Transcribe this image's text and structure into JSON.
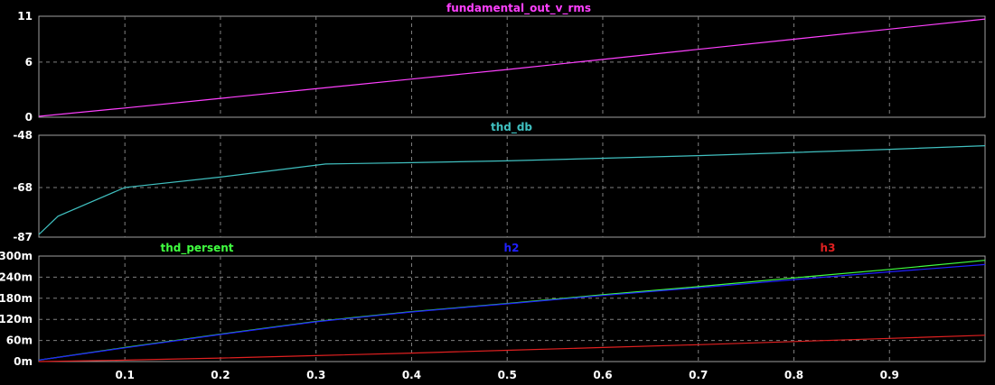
{
  "chart_data": {
    "type": "line",
    "xlim": [
      0.01,
      1.0
    ],
    "x_ticks": [
      "0.1",
      "0.2",
      "0.3",
      "0.4",
      "0.5",
      "0.6",
      "0.7",
      "0.8",
      "0.9"
    ],
    "x_tick_values": [
      0.1,
      0.2,
      0.3,
      0.4,
      0.5,
      0.6,
      0.7,
      0.8,
      0.9
    ],
    "grid": true,
    "panels": [
      {
        "id": "p1",
        "ylim": [
          0,
          11
        ],
        "y_ticks": [
          {
            "value": 0,
            "label": "0"
          },
          {
            "value": 6,
            "label": "6"
          },
          {
            "value": 11,
            "label": "11"
          }
        ],
        "series": [
          {
            "name": "fundamental_out_v_rms",
            "color": "#ff40ff",
            "x": [
              0.01,
              0.1,
              0.2,
              0.3,
              0.4,
              0.5,
              0.6,
              0.7,
              0.8,
              0.9,
              1.0
            ],
            "y": [
              0.1,
              1.0,
              2.05,
              3.1,
              4.15,
              5.2,
              6.3,
              7.4,
              8.5,
              9.6,
              10.7
            ]
          }
        ]
      },
      {
        "id": "p2",
        "ylim": [
          -87,
          -48
        ],
        "y_ticks": [
          {
            "value": -87,
            "label": "-87"
          },
          {
            "value": -68,
            "label": "-68"
          },
          {
            "value": -48,
            "label": "-48"
          }
        ],
        "series": [
          {
            "name": "thd_db",
            "color": "#40c0c0",
            "x": [
              0.01,
              0.03,
              0.1,
              0.2,
              0.31,
              0.4,
              0.5,
              0.6,
              0.7,
              0.8,
              0.9,
              1.0
            ],
            "y": [
              -86,
              -79,
              -68,
              -64,
              -59,
              -58.5,
              -57.8,
              -56.8,
              -55.8,
              -54.6,
              -53.4,
              -52
            ]
          }
        ]
      },
      {
        "id": "p3",
        "ylim": [
          0,
          0.3
        ],
        "y_ticks": [
          {
            "value": 0,
            "label": "0m"
          },
          {
            "value": 0.06,
            "label": "60m"
          },
          {
            "value": 0.12,
            "label": "120m"
          },
          {
            "value": 0.18,
            "label": "180m"
          },
          {
            "value": 0.24,
            "label": "240m"
          },
          {
            "value": 0.3,
            "label": "300m"
          }
        ],
        "series": [
          {
            "name": "thd_persent",
            "color": "#40ff40",
            "x": [
              0.01,
              0.1,
              0.2,
              0.3,
              0.4,
              0.5,
              0.6,
              0.7,
              0.8,
              0.9,
              1.0
            ],
            "y": [
              0.004,
              0.04,
              0.078,
              0.114,
              0.142,
              0.165,
              0.19,
              0.213,
              0.238,
              0.262,
              0.288
            ]
          },
          {
            "name": "h2",
            "color": "#2020ff",
            "x": [
              0.01,
              0.1,
              0.2,
              0.3,
              0.4,
              0.5,
              0.6,
              0.7,
              0.8,
              0.9,
              1.0
            ],
            "y": [
              0.004,
              0.039,
              0.077,
              0.113,
              0.141,
              0.164,
              0.188,
              0.21,
              0.233,
              0.255,
              0.276
            ]
          },
          {
            "name": "h3",
            "color": "#e02020",
            "x": [
              0.01,
              0.1,
              0.2,
              0.3,
              0.4,
              0.5,
              0.6,
              0.7,
              0.8,
              0.9,
              1.0
            ],
            "y": [
              0.0,
              0.004,
              0.01,
              0.017,
              0.024,
              0.032,
              0.04,
              0.048,
              0.057,
              0.066,
              0.075
            ]
          }
        ]
      }
    ]
  }
}
